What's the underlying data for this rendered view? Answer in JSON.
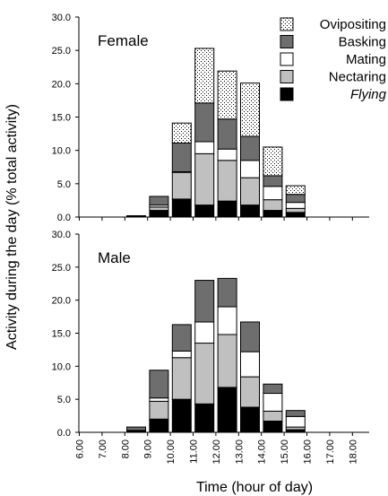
{
  "chart_data": {
    "type": "bar",
    "stacked": true,
    "ylabel": "Activity during the day (% total activity)",
    "xlabel": "Time (hour of day)",
    "x_ticks": [
      "6.00",
      "7.00",
      "8.00",
      "9.00",
      "10.00",
      "11.00",
      "12.00",
      "13.00",
      "14.00",
      "15.00",
      "16.00",
      "17.00",
      "18.00"
    ],
    "y_ticks": [
      "0.0",
      "5.0",
      "10.0",
      "15.0",
      "20.0",
      "25.0",
      "30.0"
    ],
    "ylim": [
      0,
      30
    ],
    "legend": {
      "placement": "top-right",
      "entries": [
        {
          "label": "Ovipositing",
          "style": "dotted",
          "italic": false
        },
        {
          "label": "Basking",
          "color": "#6e6e6e",
          "italic": false
        },
        {
          "label": "Mating",
          "color": "#ffffff",
          "italic": false
        },
        {
          "label": "Nectaring",
          "color": "#c0c0c0",
          "italic": false
        },
        {
          "label": "Flying",
          "color": "#000000",
          "italic": true
        }
      ]
    },
    "series_order": [
      "Flying",
      "Nectaring",
      "Mating",
      "Basking",
      "Ovipositing"
    ],
    "series_colors": {
      "Flying": "#000000",
      "Nectaring": "#c0c0c0",
      "Mating": "#ffffff",
      "Basking": "#6e6e6e",
      "Ovipositing": "dotted"
    },
    "categories": [
      8,
      9,
      10,
      11,
      12,
      13,
      14,
      15
    ],
    "panels": [
      {
        "title": "Female",
        "series": [
          {
            "name": "Flying",
            "values": [
              0.2,
              1.0,
              2.7,
              1.8,
              2.4,
              1.8,
              1.0,
              0.7
            ]
          },
          {
            "name": "Nectaring",
            "values": [
              0.0,
              0.5,
              4.0,
              7.7,
              6.1,
              4.1,
              1.6,
              0.6
            ]
          },
          {
            "name": "Mating",
            "values": [
              0.0,
              0.3,
              0.1,
              1.8,
              1.7,
              2.6,
              2.0,
              0.9
            ]
          },
          {
            "name": "Basking",
            "values": [
              0.0,
              1.3,
              4.3,
              5.8,
              4.5,
              3.6,
              1.6,
              1.2
            ]
          },
          {
            "name": "Ovipositing",
            "values": [
              0.0,
              0.0,
              3.0,
              8.2,
              7.2,
              8.0,
              4.3,
              1.3
            ]
          }
        ]
      },
      {
        "title": "Male",
        "series": [
          {
            "name": "Flying",
            "values": [
              0.3,
              2.0,
              5.0,
              4.3,
              6.8,
              3.8,
              1.7,
              0.4
            ]
          },
          {
            "name": "Nectaring",
            "values": [
              0.0,
              2.7,
              6.3,
              9.2,
              8.0,
              4.6,
              1.5,
              0.4
            ]
          },
          {
            "name": "Mating",
            "values": [
              0.0,
              0.5,
              1.0,
              3.2,
              4.2,
              3.8,
              2.7,
              1.6
            ]
          },
          {
            "name": "Basking",
            "values": [
              0.5,
              4.2,
              4.0,
              6.3,
              4.3,
              4.5,
              1.4,
              0.9
            ]
          },
          {
            "name": "Ovipositing",
            "values": [
              0.0,
              0.0,
              0.0,
              0.0,
              0.0,
              0.0,
              0.0,
              0.0
            ]
          }
        ]
      }
    ]
  }
}
